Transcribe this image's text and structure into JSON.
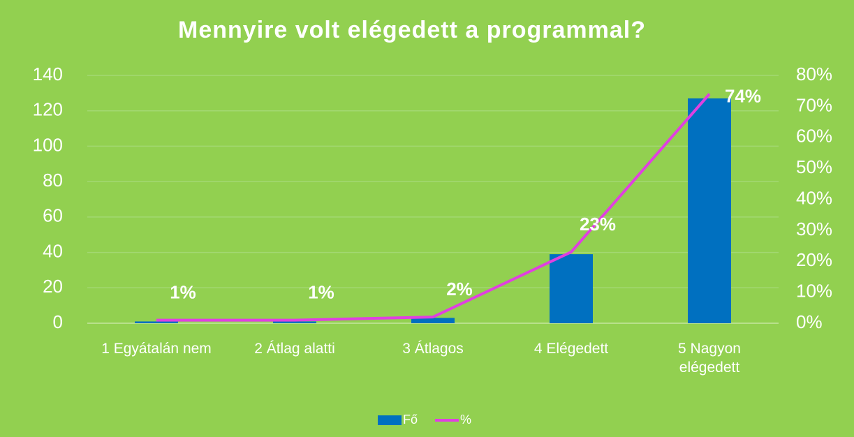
{
  "chart_data": {
    "type": "bar",
    "title": "Mennyire volt elégedett a programmal?",
    "categories": [
      "1 Egyátalán nem",
      "2 Átlag alatti",
      "3 Átlagos",
      "4 Elégedett",
      "5 Nagyon elégedett"
    ],
    "series": [
      {
        "name": "Fő",
        "type": "bar",
        "color": "#0070c0",
        "values": [
          1,
          1,
          3,
          39,
          127
        ]
      },
      {
        "name": "%",
        "type": "line",
        "axis": "y2",
        "color": "#e040e0",
        "values": [
          1,
          1,
          2,
          23,
          74
        ],
        "value_labels": [
          "1%",
          "1%",
          "2%",
          "23%",
          "74%"
        ]
      }
    ],
    "ylim": [
      0,
      140
    ],
    "yticks": [
      0,
      20,
      40,
      60,
      80,
      100,
      120,
      140
    ],
    "y2lim": [
      0,
      80
    ],
    "y2ticks": [
      {
        "value": 0,
        "label": "0%"
      },
      {
        "value": 10,
        "label": "10%"
      },
      {
        "value": 20,
        "label": "20%"
      },
      {
        "value": 30,
        "label": "30%"
      },
      {
        "value": 40,
        "label": "40%"
      },
      {
        "value": 50,
        "label": "50%"
      },
      {
        "value": 60,
        "label": "60%"
      },
      {
        "value": 70,
        "label": "70%"
      },
      {
        "value": 80,
        "label": "80%"
      }
    ],
    "grid": true,
    "legend": "bottom"
  }
}
